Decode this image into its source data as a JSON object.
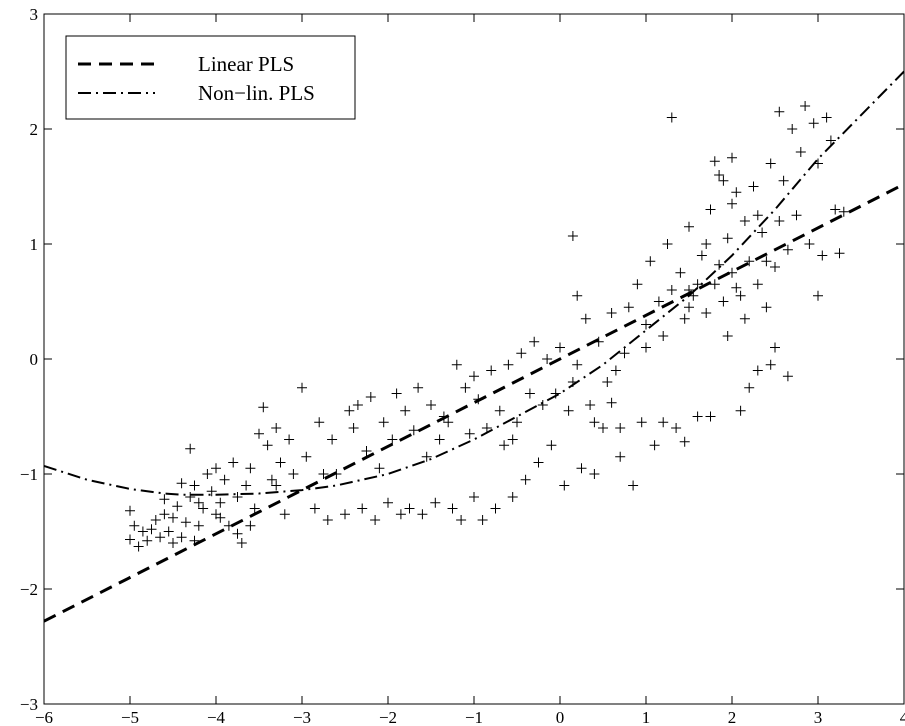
{
  "chart_data": {
    "type": "scatter",
    "title": "",
    "xlabel": "",
    "ylabel": "",
    "xlim": [
      -6,
      4
    ],
    "ylim": [
      -3,
      3
    ],
    "x_ticks": [
      -6,
      -5,
      -4,
      -3,
      -2,
      -1,
      0,
      1,
      2,
      3,
      4
    ],
    "y_ticks": [
      -3,
      -2,
      -1,
      0,
      1,
      2,
      3
    ],
    "x_tick_labels": [
      "−6",
      "−5",
      "−4",
      "−3",
      "−2",
      "−1",
      "0",
      "1",
      "2",
      "3",
      "4"
    ],
    "y_tick_labels": [
      "−3",
      "−2",
      "−1",
      "0",
      "1",
      "2",
      "3"
    ],
    "grid": false,
    "legend_position": "top-left",
    "colors": {
      "ink": "#000000",
      "background": "#ffffff"
    },
    "series": [
      {
        "name": "Linear PLS",
        "kind": "line",
        "style": "dashed",
        "x": [
          -6,
          4
        ],
        "y": [
          -2.28,
          1.52
        ]
      },
      {
        "name": "Non−lin. PLS",
        "kind": "line",
        "style": "dash-dot",
        "x": [
          -6.0,
          -5.5,
          -5.0,
          -4.6,
          -4.4,
          -4.0,
          -3.5,
          -3.0,
          -2.6,
          -2.0,
          -1.5,
          -1.0,
          -0.5,
          0.0,
          0.5,
          1.0,
          1.5,
          2.0,
          2.5,
          3.0,
          3.5,
          4.0
        ],
        "y": [
          -0.93,
          -1.05,
          -1.13,
          -1.17,
          -1.18,
          -1.18,
          -1.17,
          -1.14,
          -1.1,
          -1.0,
          -0.87,
          -0.7,
          -0.5,
          -0.3,
          -0.05,
          0.25,
          0.55,
          0.9,
          1.3,
          1.74,
          2.12,
          2.5
        ]
      },
      {
        "name": "",
        "kind": "scatter",
        "marker": "+",
        "points": [
          [
            -5.0,
            -1.32
          ],
          [
            -4.95,
            -1.45
          ],
          [
            -5.0,
            -1.57
          ],
          [
            -4.9,
            -1.63
          ],
          [
            -4.85,
            -1.5
          ],
          [
            -4.8,
            -1.58
          ],
          [
            -4.7,
            -1.4
          ],
          [
            -4.65,
            -1.55
          ],
          [
            -4.6,
            -1.35
          ],
          [
            -4.55,
            -1.5
          ],
          [
            -4.5,
            -1.38
          ],
          [
            -4.45,
            -1.28
          ],
          [
            -4.4,
            -1.55
          ],
          [
            -4.35,
            -1.42
          ],
          [
            -4.3,
            -1.2
          ],
          [
            -4.25,
            -1.1
          ],
          [
            -4.2,
            -1.45
          ],
          [
            -4.15,
            -1.3
          ],
          [
            -4.1,
            -1.0
          ],
          [
            -4.05,
            -1.15
          ],
          [
            -4.0,
            -1.35
          ],
          [
            -4.0,
            -0.95
          ],
          [
            -3.95,
            -1.25
          ],
          [
            -3.9,
            -1.05
          ],
          [
            -3.85,
            -1.45
          ],
          [
            -3.8,
            -0.9
          ],
          [
            -3.75,
            -1.2
          ],
          [
            -3.7,
            -1.6
          ],
          [
            -3.65,
            -1.1
          ],
          [
            -3.6,
            -0.95
          ],
          [
            -3.55,
            -1.3
          ],
          [
            -3.5,
            -0.65
          ],
          [
            -3.45,
            -0.42
          ],
          [
            -3.4,
            -0.75
          ],
          [
            -3.35,
            -1.05
          ],
          [
            -3.3,
            -0.6
          ],
          [
            -3.25,
            -0.9
          ],
          [
            -3.2,
            -1.35
          ],
          [
            -3.15,
            -0.7
          ],
          [
            -3.1,
            -1.0
          ],
          [
            -4.3,
            -0.78
          ],
          [
            -4.2,
            -1.25
          ],
          [
            -4.4,
            -1.08
          ],
          [
            -4.6,
            -1.22
          ],
          [
            -4.75,
            -1.48
          ],
          [
            -4.5,
            -1.6
          ],
          [
            -4.25,
            -1.58
          ],
          [
            -3.95,
            -1.38
          ],
          [
            -3.75,
            -1.52
          ],
          [
            -3.6,
            -1.45
          ],
          [
            -3.0,
            -0.25
          ],
          [
            -2.95,
            -0.85
          ],
          [
            -2.85,
            -1.3
          ],
          [
            -2.8,
            -0.55
          ],
          [
            -2.7,
            -1.4
          ],
          [
            -2.65,
            -0.7
          ],
          [
            -2.6,
            -1.0
          ],
          [
            -2.5,
            -1.35
          ],
          [
            -2.45,
            -0.45
          ],
          [
            -2.4,
            -0.6
          ],
          [
            -2.3,
            -1.3
          ],
          [
            -2.25,
            -0.8
          ],
          [
            -2.2,
            -0.33
          ],
          [
            -2.15,
            -1.4
          ],
          [
            -2.05,
            -0.55
          ],
          [
            -2.0,
            -1.25
          ],
          [
            -1.95,
            -0.7
          ],
          [
            -1.9,
            -0.3
          ],
          [
            -1.85,
            -1.35
          ],
          [
            -1.8,
            -0.45
          ],
          [
            -1.75,
            -1.3
          ],
          [
            -1.7,
            -0.62
          ],
          [
            -1.65,
            -0.25
          ],
          [
            -1.6,
            -1.35
          ],
          [
            -1.5,
            -0.4
          ],
          [
            -1.45,
            -1.25
          ],
          [
            -1.4,
            -0.7
          ],
          [
            -1.35,
            -0.5
          ],
          [
            -1.3,
            -0.55
          ],
          [
            -1.25,
            -1.3
          ],
          [
            -1.2,
            -0.05
          ],
          [
            -1.15,
            -1.4
          ],
          [
            -1.1,
            -0.25
          ],
          [
            -1.05,
            -0.65
          ],
          [
            -1.0,
            -1.2
          ],
          [
            -0.95,
            -0.35
          ],
          [
            -0.9,
            -1.4
          ],
          [
            -0.85,
            -0.6
          ],
          [
            -0.8,
            -0.1
          ],
          [
            -0.75,
            -1.3
          ],
          [
            -0.7,
            -0.45
          ],
          [
            -0.65,
            -0.75
          ],
          [
            -0.6,
            -0.05
          ],
          [
            -0.55,
            -1.2
          ],
          [
            -0.5,
            -0.55
          ],
          [
            -0.45,
            0.05
          ],
          [
            -0.4,
            -1.05
          ],
          [
            -0.35,
            -0.3
          ],
          [
            -0.3,
            0.15
          ],
          [
            -0.25,
            -0.9
          ],
          [
            -0.2,
            -0.4
          ],
          [
            -0.15,
            0.0
          ],
          [
            -0.1,
            -0.75
          ],
          [
            -0.05,
            -0.3
          ],
          [
            0.0,
            0.1
          ],
          [
            0.05,
            -1.1
          ],
          [
            0.1,
            -0.45
          ],
          [
            0.15,
            -0.2
          ],
          [
            0.2,
            -0.05
          ],
          [
            0.25,
            -0.95
          ],
          [
            0.3,
            0.35
          ],
          [
            0.35,
            -0.4
          ],
          [
            0.4,
            -1.0
          ],
          [
            0.45,
            0.15
          ],
          [
            0.5,
            -0.6
          ],
          [
            0.55,
            -0.2
          ],
          [
            0.6,
            0.4
          ],
          [
            0.65,
            -0.1
          ],
          [
            0.7,
            -0.85
          ],
          [
            0.75,
            0.05
          ],
          [
            0.15,
            1.07
          ],
          [
            0.2,
            0.55
          ],
          [
            0.4,
            -0.55
          ],
          [
            -0.55,
            -0.7
          ],
          [
            -1.0,
            -0.15
          ],
          [
            -1.55,
            -0.85
          ],
          [
            -2.1,
            -0.95
          ],
          [
            -2.35,
            -0.4
          ],
          [
            -2.75,
            -1.0
          ],
          [
            -3.3,
            -1.1
          ],
          [
            0.8,
            0.45
          ],
          [
            0.85,
            -1.1
          ],
          [
            0.9,
            0.65
          ],
          [
            0.95,
            -0.55
          ],
          [
            1.0,
            0.3
          ],
          [
            1.05,
            0.85
          ],
          [
            1.1,
            -0.75
          ],
          [
            1.15,
            0.5
          ],
          [
            1.2,
            0.2
          ],
          [
            1.25,
            1.0
          ],
          [
            1.3,
            0.6
          ],
          [
            1.3,
            2.1
          ],
          [
            1.35,
            -0.6
          ],
          [
            1.4,
            0.75
          ],
          [
            1.45,
            0.35
          ],
          [
            1.5,
            1.15
          ],
          [
            1.55,
            0.55
          ],
          [
            1.6,
            -0.5
          ],
          [
            1.65,
            0.9
          ],
          [
            1.7,
            0.4
          ],
          [
            1.75,
            1.3
          ],
          [
            1.8,
            0.65
          ],
          [
            1.85,
            1.6
          ],
          [
            1.9,
            0.5
          ],
          [
            1.95,
            1.05
          ],
          [
            2.0,
            0.75
          ],
          [
            2.05,
            1.45
          ],
          [
            2.1,
            0.55
          ],
          [
            2.15,
            1.2
          ],
          [
            2.2,
            0.85
          ],
          [
            2.25,
            1.5
          ],
          [
            2.3,
            0.65
          ],
          [
            2.35,
            1.1
          ],
          [
            2.4,
            0.85
          ],
          [
            2.45,
            1.7
          ],
          [
            2.5,
            0.8
          ],
          [
            2.55,
            2.15
          ],
          [
            2.6,
            1.55
          ],
          [
            2.65,
            0.95
          ],
          [
            2.7,
            2.0
          ],
          [
            2.75,
            1.25
          ],
          [
            2.8,
            1.8
          ],
          [
            2.85,
            2.2
          ],
          [
            2.9,
            1.0
          ],
          [
            2.95,
            2.05
          ],
          [
            3.0,
            1.7
          ],
          [
            3.05,
            0.9
          ],
          [
            3.1,
            2.1
          ],
          [
            3.15,
            1.9
          ],
          [
            3.2,
            1.3
          ],
          [
            3.25,
            0.92
          ],
          [
            3.3,
            1.28
          ],
          [
            1.8,
            1.72
          ],
          [
            1.9,
            1.55
          ],
          [
            2.0,
            1.35
          ],
          [
            1.7,
            1.0
          ],
          [
            1.6,
            0.65
          ],
          [
            1.5,
            0.45
          ],
          [
            2.15,
            0.35
          ],
          [
            2.3,
            -0.1
          ],
          [
            2.4,
            0.45
          ],
          [
            2.2,
            -0.25
          ],
          [
            2.45,
            -0.05
          ],
          [
            2.5,
            0.1
          ],
          [
            1.5,
            0.6
          ],
          [
            1.85,
            0.82
          ],
          [
            2.05,
            0.62
          ],
          [
            1.95,
            0.2
          ],
          [
            1.75,
            -0.5
          ],
          [
            2.1,
            -0.45
          ],
          [
            1.0,
            0.1
          ],
          [
            0.6,
            -0.38
          ],
          [
            0.7,
            -0.6
          ],
          [
            1.45,
            -0.72
          ],
          [
            1.2,
            -0.55
          ],
          [
            2.0,
            1.75
          ],
          [
            2.55,
            1.2
          ],
          [
            3.0,
            0.55
          ],
          [
            2.65,
            -0.15
          ],
          [
            2.3,
            1.25
          ]
        ]
      }
    ]
  }
}
